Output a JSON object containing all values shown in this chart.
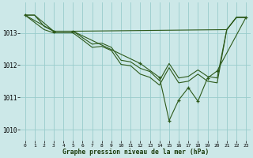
{
  "title": "Graphe pression niveau de la mer (hPa)",
  "bg_color": "#cce8e8",
  "grid_color": "#99cccc",
  "line_color": "#2d5a1b",
  "xlim": [
    -0.5,
    23.5
  ],
  "ylim": [
    1009.65,
    1013.95
  ],
  "yticks": [
    1010,
    1011,
    1012,
    1013
  ],
  "xticks": [
    0,
    1,
    2,
    3,
    4,
    5,
    6,
    7,
    8,
    9,
    10,
    11,
    12,
    13,
    14,
    15,
    16,
    17,
    18,
    19,
    20,
    21,
    22,
    23
  ],
  "s1_x": [
    0,
    1,
    2,
    3,
    4,
    5,
    6,
    7,
    8,
    9,
    10,
    11,
    12,
    13,
    14,
    15,
    16,
    17,
    18,
    19,
    20,
    21,
    22,
    23
  ],
  "s1_y": [
    1013.55,
    1013.55,
    1013.2,
    1013.05,
    1013.05,
    1013.05,
    1012.85,
    1012.65,
    1012.68,
    1012.55,
    1012.15,
    1012.1,
    1011.9,
    1011.8,
    1011.52,
    1012.05,
    1011.6,
    1011.65,
    1011.85,
    1011.65,
    1011.6,
    1013.1,
    1013.48,
    1013.48
  ],
  "s2_x": [
    0,
    1,
    2,
    3,
    4,
    5,
    21,
    22,
    23
  ],
  "s2_y": [
    1013.55,
    1013.55,
    1013.3,
    1013.05,
    1013.05,
    1013.05,
    1013.1,
    1013.48,
    1013.48
  ],
  "s3_x": [
    0,
    2,
    3,
    4,
    5,
    6,
    7,
    8,
    9,
    10,
    11,
    12,
    13,
    14,
    15,
    16,
    17,
    18,
    19,
    20,
    21,
    22,
    23
  ],
  "s3_y": [
    1013.55,
    1013.1,
    1013.0,
    1013.0,
    1013.0,
    1012.78,
    1012.55,
    1012.58,
    1012.45,
    1012.02,
    1011.98,
    1011.72,
    1011.62,
    1011.38,
    1011.92,
    1011.45,
    1011.5,
    1011.72,
    1011.5,
    1011.45,
    1013.1,
    1013.48,
    1013.48
  ],
  "s4_x": [
    0,
    3,
    5,
    12,
    14,
    15,
    16,
    17,
    18,
    19,
    20,
    23
  ],
  "s4_y": [
    1013.55,
    1013.05,
    1013.05,
    1012.05,
    1011.62,
    1010.28,
    1010.92,
    1011.3,
    1010.88,
    1011.6,
    1011.82,
    1013.48
  ]
}
